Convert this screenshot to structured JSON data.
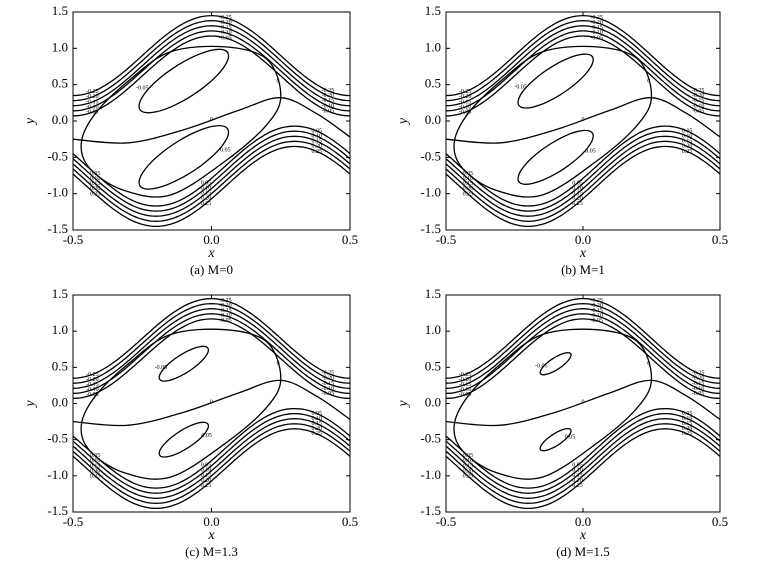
{
  "chart_data": [
    {
      "type": "contour",
      "caption": "(a) M=0",
      "xlabel": "x",
      "ylabel": "y",
      "xlim": [
        -0.5,
        0.5
      ],
      "ylim": [
        -1.5,
        1.5
      ],
      "xticks": [
        -0.5,
        {
          "value": 0,
          "label": "0.0"
        },
        0.5
      ],
      "yticks": [
        -1.5,
        {
          "value": -1,
          "label": "-1.0"
        },
        -0.5,
        {
          "value": 0,
          "label": "0.0"
        },
        0.5,
        {
          "value": 1,
          "label": "1.0"
        },
        1.5
      ],
      "levels": [
        -0.25,
        {
          "value": -0.2,
          "label": "-0.20"
        },
        -0.15,
        {
          "value": -0.1,
          "label": "-0.10"
        },
        -0.05,
        0,
        0.05,
        {
          "value": 0.1,
          "label": "0.10"
        },
        0.15,
        {
          "value": 0.2,
          "label": "0.20"
        },
        0.25
      ]
    },
    {
      "type": "contour",
      "caption": "(b) M=1",
      "xlabel": "x",
      "ylabel": "y",
      "xlim": [
        -0.5,
        0.5
      ],
      "ylim": [
        -1.5,
        1.5
      ],
      "xticks": [
        -0.5,
        {
          "value": 0,
          "label": "0.0"
        },
        0.5
      ],
      "yticks": [
        -1.5,
        {
          "value": -1,
          "label": "-1.0"
        },
        -0.5,
        {
          "value": 0,
          "label": "0.0"
        },
        0.5,
        {
          "value": 1,
          "label": "1.0"
        },
        1.5
      ],
      "levels": [
        -0.25,
        {
          "value": -0.2,
          "label": "-0.20"
        },
        -0.15,
        {
          "value": -0.1,
          "label": "-0.10"
        },
        -0.05,
        0,
        0.05,
        {
          "value": 0.1,
          "label": "0.10"
        },
        0.15,
        {
          "value": 0.2,
          "label": "0.20"
        },
        0.25
      ]
    },
    {
      "type": "contour",
      "caption": "(c) M=1.3",
      "xlabel": "x",
      "ylabel": "y",
      "xlim": [
        -0.5,
        0.5
      ],
      "ylim": [
        -1.5,
        1.5
      ],
      "xticks": [
        -0.5,
        {
          "value": 0,
          "label": "0.0"
        },
        0.5
      ],
      "yticks": [
        -1.5,
        {
          "value": -1,
          "label": "-1.0"
        },
        -0.5,
        {
          "value": 0,
          "label": "0.0"
        },
        0.5,
        {
          "value": 1,
          "label": "1.0"
        },
        1.5
      ],
      "levels": [
        -0.25,
        {
          "value": -0.2,
          "label": "-0.20"
        },
        -0.15,
        {
          "value": -0.1,
          "label": "-0.10"
        },
        -0.05,
        0,
        0.05,
        {
          "value": 0.1,
          "label": "0.10"
        },
        0.15,
        {
          "value": 0.2,
          "label": "0.20"
        },
        0.25
      ]
    },
    {
      "type": "contour",
      "caption": "(d) M=1.5",
      "xlabel": "x",
      "ylabel": "y",
      "xlim": [
        -0.5,
        0.5
      ],
      "ylim": [
        -1.5,
        1.5
      ],
      "xticks": [
        -0.5,
        {
          "value": 0,
          "label": "0.0"
        },
        0.5
      ],
      "yticks": [
        -1.5,
        {
          "value": -1,
          "label": "-1.0"
        },
        -0.5,
        {
          "value": 0,
          "label": "0.0"
        },
        0.5,
        {
          "value": 1,
          "label": "1.0"
        },
        1.5
      ],
      "levels": [
        -0.25,
        {
          "value": -0.2,
          "label": "-0.20"
        },
        -0.15,
        {
          "value": -0.1,
          "label": "-0.10"
        },
        -0.05,
        0,
        0.05,
        {
          "value": 0.1,
          "label": "0.10"
        },
        0.15,
        {
          "value": 0.2,
          "label": "0.20"
        },
        0.25
      ]
    }
  ]
}
